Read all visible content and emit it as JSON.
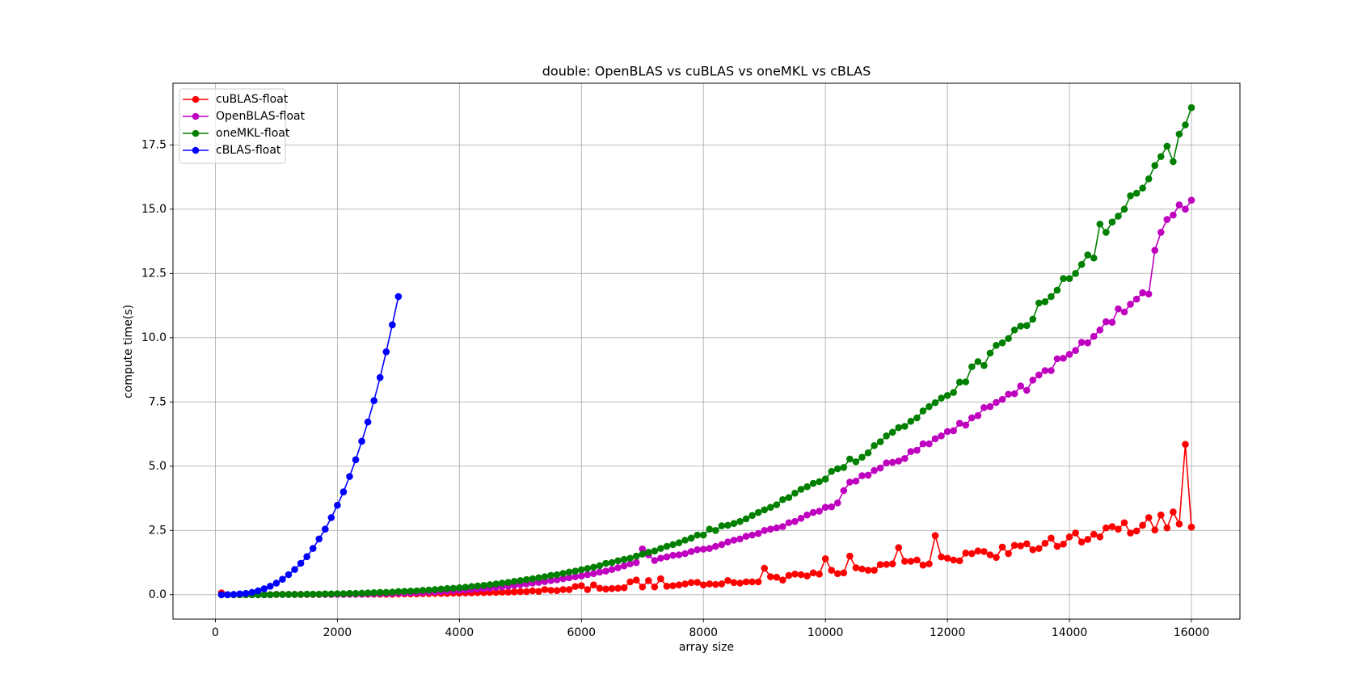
{
  "chart_data": {
    "type": "line",
    "title": "double: OpenBLAS vs cuBLAS vs oneMKL vs cBLAS",
    "x_label": "array size",
    "y_label": "compute time(s)",
    "grid": true,
    "legend": "upper left",
    "xlim": [
      -695,
      16795
    ],
    "ylim": [
      -0.95,
      19.9
    ],
    "xticks": [
      0,
      2000,
      4000,
      6000,
      8000,
      10000,
      12000,
      14000,
      16000
    ],
    "yticks": [
      {
        "value": 0,
        "label": "0.0"
      },
      2.5,
      {
        "value": 5,
        "label": "5.0"
      },
      7.5,
      {
        "value": 10,
        "label": "10.0"
      },
      12.5,
      {
        "value": 15,
        "label": "15.0"
      },
      17.5
    ],
    "x": [
      100,
      200,
      300,
      400,
      500,
      600,
      700,
      800,
      900,
      1000,
      1100,
      1200,
      1300,
      1400,
      1500,
      1600,
      1700,
      1800,
      1900,
      2000,
      2100,
      2200,
      2300,
      2400,
      2500,
      2600,
      2700,
      2800,
      2900,
      3000,
      3100,
      3200,
      3300,
      3400,
      3500,
      3600,
      3700,
      3800,
      3900,
      4000,
      4100,
      4200,
      4300,
      4400,
      4500,
      4600,
      4700,
      4800,
      4900,
      5000,
      5100,
      5200,
      5300,
      5400,
      5500,
      5600,
      5700,
      5800,
      5900,
      6000,
      6100,
      6200,
      6300,
      6400,
      6500,
      6600,
      6700,
      6800,
      6900,
      7000,
      7100,
      7200,
      7300,
      7400,
      7500,
      7600,
      7700,
      7800,
      7900,
      8000,
      8100,
      8200,
      8300,
      8400,
      8500,
      8600,
      8700,
      8800,
      8900,
      9000,
      9100,
      9200,
      9300,
      9400,
      9500,
      9600,
      9700,
      9800,
      9900,
      10000,
      10100,
      10200,
      10300,
      10400,
      10500,
      10600,
      10700,
      10800,
      10900,
      11000,
      11100,
      11200,
      11300,
      11400,
      11500,
      11600,
      11700,
      11800,
      11900,
      12000,
      12100,
      12200,
      12300,
      12400,
      12500,
      12600,
      12700,
      12800,
      12900,
      13000,
      13100,
      13200,
      13300,
      13400,
      13500,
      13600,
      13700,
      13800,
      13900,
      14000,
      14100,
      14200,
      14300,
      14400,
      14500,
      14600,
      14700,
      14800,
      14900,
      15000,
      15100,
      15200,
      15300,
      15400,
      15500,
      15600,
      15700,
      15800,
      15900,
      16000
    ],
    "series": [
      {
        "name": "cuBLAS-float",
        "color": "#ff0000",
        "values": [
          0.07,
          0,
          0,
          0,
          0,
          0,
          0,
          0,
          0,
          0.01,
          0.01,
          0.01,
          0.01,
          0.01,
          0.01,
          0.01,
          0.01,
          0.01,
          0.01,
          0.02,
          0.02,
          0.02,
          0.02,
          0.02,
          0.02,
          0.02,
          0.02,
          0.02,
          0.02,
          0.03,
          0.03,
          0.03,
          0.03,
          0.04,
          0.04,
          0.05,
          0.05,
          0.05,
          0.06,
          0.06,
          0.07,
          0.07,
          0.08,
          0.08,
          0.09,
          0.09,
          0.1,
          0.1,
          0.11,
          0.12,
          0.12,
          0.15,
          0.13,
          0.2,
          0.17,
          0.16,
          0.2,
          0.2,
          0.32,
          0.35,
          0.2,
          0.38,
          0.25,
          0.22,
          0.24,
          0.25,
          0.27,
          0.5,
          0.57,
          0.3,
          0.55,
          0.3,
          0.62,
          0.33,
          0.35,
          0.38,
          0.42,
          0.47,
          0.48,
          0.38,
          0.42,
          0.4,
          0.42,
          0.55,
          0.47,
          0.45,
          0.5,
          0.5,
          0.5,
          1.03,
          0.7,
          0.68,
          0.57,
          0.75,
          0.8,
          0.78,
          0.73,
          0.85,
          0.8,
          1.4,
          0.95,
          0.82,
          0.85,
          1.5,
          1.05,
          1.0,
          0.95,
          0.95,
          1.17,
          1.18,
          1.2,
          1.83,
          1.3,
          1.3,
          1.35,
          1.15,
          1.2,
          2.3,
          1.47,
          1.42,
          1.35,
          1.32,
          1.62,
          1.6,
          1.7,
          1.68,
          1.55,
          1.45,
          1.85,
          1.6,
          1.92,
          1.9,
          1.98,
          1.75,
          1.8,
          2.0,
          2.2,
          1.88,
          1.97,
          2.25,
          2.4,
          2.05,
          2.15,
          2.35,
          2.25,
          2.6,
          2.65,
          2.55,
          2.8,
          2.4,
          2.48,
          2.7,
          3.0,
          2.52,
          3.1,
          2.6,
          3.22,
          2.75,
          5.85,
          2.63
        ]
      },
      {
        "name": "OpenBLAS-float",
        "color": "#bf00bf",
        "values": [
          0,
          0,
          0,
          0,
          0,
          0,
          0,
          0,
          0,
          0.01,
          0.01,
          0.01,
          0.01,
          0.01,
          0.01,
          0.01,
          0.01,
          0.01,
          0.01,
          0.01,
          0.01,
          0.02,
          0.02,
          0.02,
          0.03,
          0.03,
          0.04,
          0.04,
          0.05,
          0.06,
          0.06,
          0.07,
          0.08,
          0.09,
          0.1,
          0.11,
          0.12,
          0.14,
          0.15,
          0.17,
          0.18,
          0.2,
          0.22,
          0.24,
          0.26,
          0.28,
          0.31,
          0.33,
          0.36,
          0.39,
          0.42,
          0.45,
          0.48,
          0.51,
          0.55,
          0.58,
          0.62,
          0.66,
          0.7,
          0.73,
          0.78,
          0.82,
          0.88,
          0.92,
          0.98,
          1.05,
          1.12,
          1.2,
          1.25,
          1.78,
          1.55,
          1.33,
          1.42,
          1.47,
          1.53,
          1.55,
          1.6,
          1.68,
          1.75,
          1.77,
          1.8,
          1.88,
          1.95,
          2.05,
          2.12,
          2.17,
          2.27,
          2.32,
          2.38,
          2.5,
          2.55,
          2.6,
          2.65,
          2.8,
          2.85,
          2.97,
          3.1,
          3.2,
          3.25,
          3.4,
          3.42,
          3.57,
          4.05,
          4.38,
          4.42,
          4.63,
          4.65,
          4.83,
          4.93,
          5.13,
          5.15,
          5.2,
          5.3,
          5.57,
          5.62,
          5.87,
          5.87,
          6.07,
          6.18,
          6.35,
          6.38,
          6.67,
          6.6,
          6.88,
          6.97,
          7.28,
          7.32,
          7.48,
          7.6,
          7.8,
          7.82,
          8.12,
          7.95,
          8.35,
          8.55,
          8.72,
          8.72,
          9.18,
          9.2,
          9.35,
          9.5,
          9.82,
          9.8,
          10.05,
          10.3,
          10.62,
          10.6,
          11.12,
          11.0,
          11.3,
          11.5,
          11.75,
          11.7,
          13.4,
          14.1,
          14.6,
          14.77,
          15.17,
          15.0,
          15.35
        ]
      },
      {
        "name": "oneMKL-float",
        "color": "#008000",
        "values": [
          0,
          0,
          0,
          0,
          0,
          0,
          0,
          0,
          0,
          0.01,
          0.01,
          0.01,
          0.01,
          0.01,
          0.02,
          0.02,
          0.02,
          0.03,
          0.03,
          0.04,
          0.04,
          0.05,
          0.05,
          0.06,
          0.07,
          0.08,
          0.09,
          0.09,
          0.1,
          0.12,
          0.13,
          0.14,
          0.15,
          0.17,
          0.18,
          0.2,
          0.22,
          0.24,
          0.25,
          0.27,
          0.29,
          0.32,
          0.34,
          0.36,
          0.39,
          0.42,
          0.45,
          0.48,
          0.52,
          0.55,
          0.59,
          0.62,
          0.66,
          0.7,
          0.75,
          0.78,
          0.83,
          0.88,
          0.92,
          0.97,
          1.02,
          1.07,
          1.13,
          1.22,
          1.25,
          1.32,
          1.37,
          1.42,
          1.5,
          1.58,
          1.65,
          1.7,
          1.8,
          1.88,
          1.95,
          2.02,
          2.12,
          2.2,
          2.32,
          2.32,
          2.55,
          2.5,
          2.68,
          2.7,
          2.77,
          2.85,
          2.95,
          3.08,
          3.2,
          3.3,
          3.4,
          3.5,
          3.7,
          3.78,
          3.95,
          4.1,
          4.2,
          4.33,
          4.4,
          4.5,
          4.8,
          4.9,
          4.95,
          5.28,
          5.17,
          5.35,
          5.52,
          5.8,
          5.95,
          6.18,
          6.32,
          6.5,
          6.55,
          6.75,
          6.88,
          7.15,
          7.32,
          7.47,
          7.65,
          7.75,
          7.87,
          8.27,
          8.28,
          8.87,
          9.07,
          8.92,
          9.4,
          9.7,
          9.8,
          9.97,
          10.3,
          10.45,
          10.47,
          10.72,
          11.35,
          11.4,
          11.6,
          11.85,
          12.3,
          12.3,
          12.5,
          12.85,
          13.22,
          13.1,
          14.42,
          14.1,
          14.5,
          14.73,
          15.0,
          15.52,
          15.62,
          15.82,
          16.18,
          16.7,
          17.05,
          17.45,
          16.85,
          17.92,
          18.28,
          18.95
        ]
      },
      {
        "name": "cBLAS-float",
        "color": "#0000ff",
        "x": [
          100,
          200,
          300,
          400,
          500,
          600,
          700,
          800,
          900,
          1000,
          1100,
          1200,
          1300,
          1400,
          1500,
          1600,
          1700,
          1800,
          1900,
          2000,
          2100,
          2200,
          2300,
          2400,
          2500,
          2600,
          2700,
          2800,
          2900,
          3000
        ],
        "values": [
          0,
          0,
          0.01,
          0.03,
          0.05,
          0.09,
          0.15,
          0.23,
          0.33,
          0.45,
          0.6,
          0.78,
          0.98,
          1.22,
          1.48,
          1.8,
          2.17,
          2.55,
          3.0,
          3.48,
          4.0,
          4.6,
          5.25,
          5.97,
          6.72,
          7.55,
          8.45,
          9.45,
          10.5,
          11.6
        ]
      }
    ]
  }
}
